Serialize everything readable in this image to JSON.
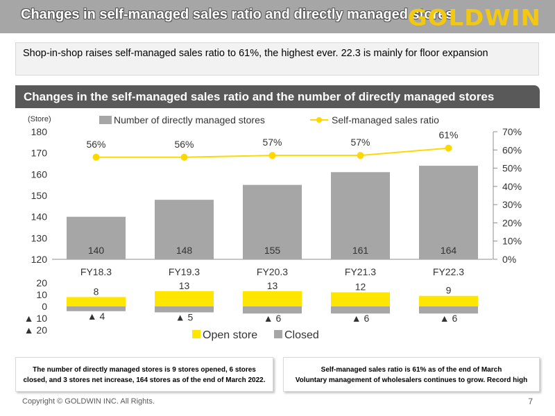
{
  "header": {
    "title": "Changes in self-managed sales ratio and directly managed stores",
    "logo": "GOLDWIN"
  },
  "message": "Shop-in-shop raises self-managed sales ratio to 61%, the highest ever. 22.3 is mainly for floor expansion",
  "section_title": "Changes in the self-managed sales ratio and the number of directly managed stores",
  "colors": {
    "bar": "#a6a6a6",
    "line": "#ffd800",
    "open": "#ffe600",
    "closed": "#a6a6a6"
  },
  "chart_data": [
    {
      "type": "bar+line",
      "unit_label": "(Store)",
      "categories": [
        "FY18.3",
        "FY19.3",
        "FY20.3",
        "FY21.3",
        "FY22.3"
      ],
      "series": [
        {
          "name": "Number of directly managed stores",
          "type": "bar",
          "axis": "left",
          "values": [
            140,
            148,
            155,
            161,
            164
          ],
          "labels": [
            "140",
            "148",
            "155",
            "161",
            "164"
          ]
        },
        {
          "name": "Self-managed sales ratio",
          "type": "line",
          "axis": "right",
          "values": [
            56,
            56,
            57,
            57,
            61
          ],
          "labels": [
            "56%",
            "56%",
            "57%",
            "57%",
            "61%"
          ]
        }
      ],
      "left_axis": {
        "min": 120,
        "max": 180,
        "ticks": [
          "120",
          "130",
          "140",
          "150",
          "160",
          "170",
          "180"
        ]
      },
      "right_axis": {
        "min": 0,
        "max": 70,
        "ticks": [
          "0%",
          "10%",
          "20%",
          "30%",
          "40%",
          "50%",
          "60%",
          "70%"
        ]
      }
    },
    {
      "type": "bar",
      "categories": [
        "FY18.3",
        "FY19.3",
        "FY20.3",
        "FY21.3",
        "FY22.3"
      ],
      "series": [
        {
          "name": "Open store",
          "values": [
            8,
            13,
            13,
            12,
            9
          ],
          "labels": [
            "8",
            "13",
            "13",
            "12",
            "9"
          ]
        },
        {
          "name": "Closed",
          "values": [
            -4,
            -5,
            -6,
            -6,
            -6
          ],
          "labels": [
            "▲ 4",
            "▲ 5",
            "▲ 6",
            "▲ 6",
            "▲ 6"
          ]
        }
      ],
      "y_axis": {
        "min": -20,
        "max": 20,
        "ticks": [
          "20",
          "10",
          "0",
          "▲ 10",
          "▲ 20"
        ]
      }
    }
  ],
  "notes": {
    "left": [
      "The number of directly managed stores is 9 stores opened, 6 stores",
      "closed, and 3 stores net increase, 164 stores as of the end of March 2022."
    ],
    "right": [
      "Self-managed sales ratio is 61% as of the end of March",
      "Voluntary management of wholesalers continues to grow. Record high"
    ]
  },
  "footer": {
    "copyright": "Copyright © GOLDWIN INC. All Rights.",
    "page": "7"
  }
}
